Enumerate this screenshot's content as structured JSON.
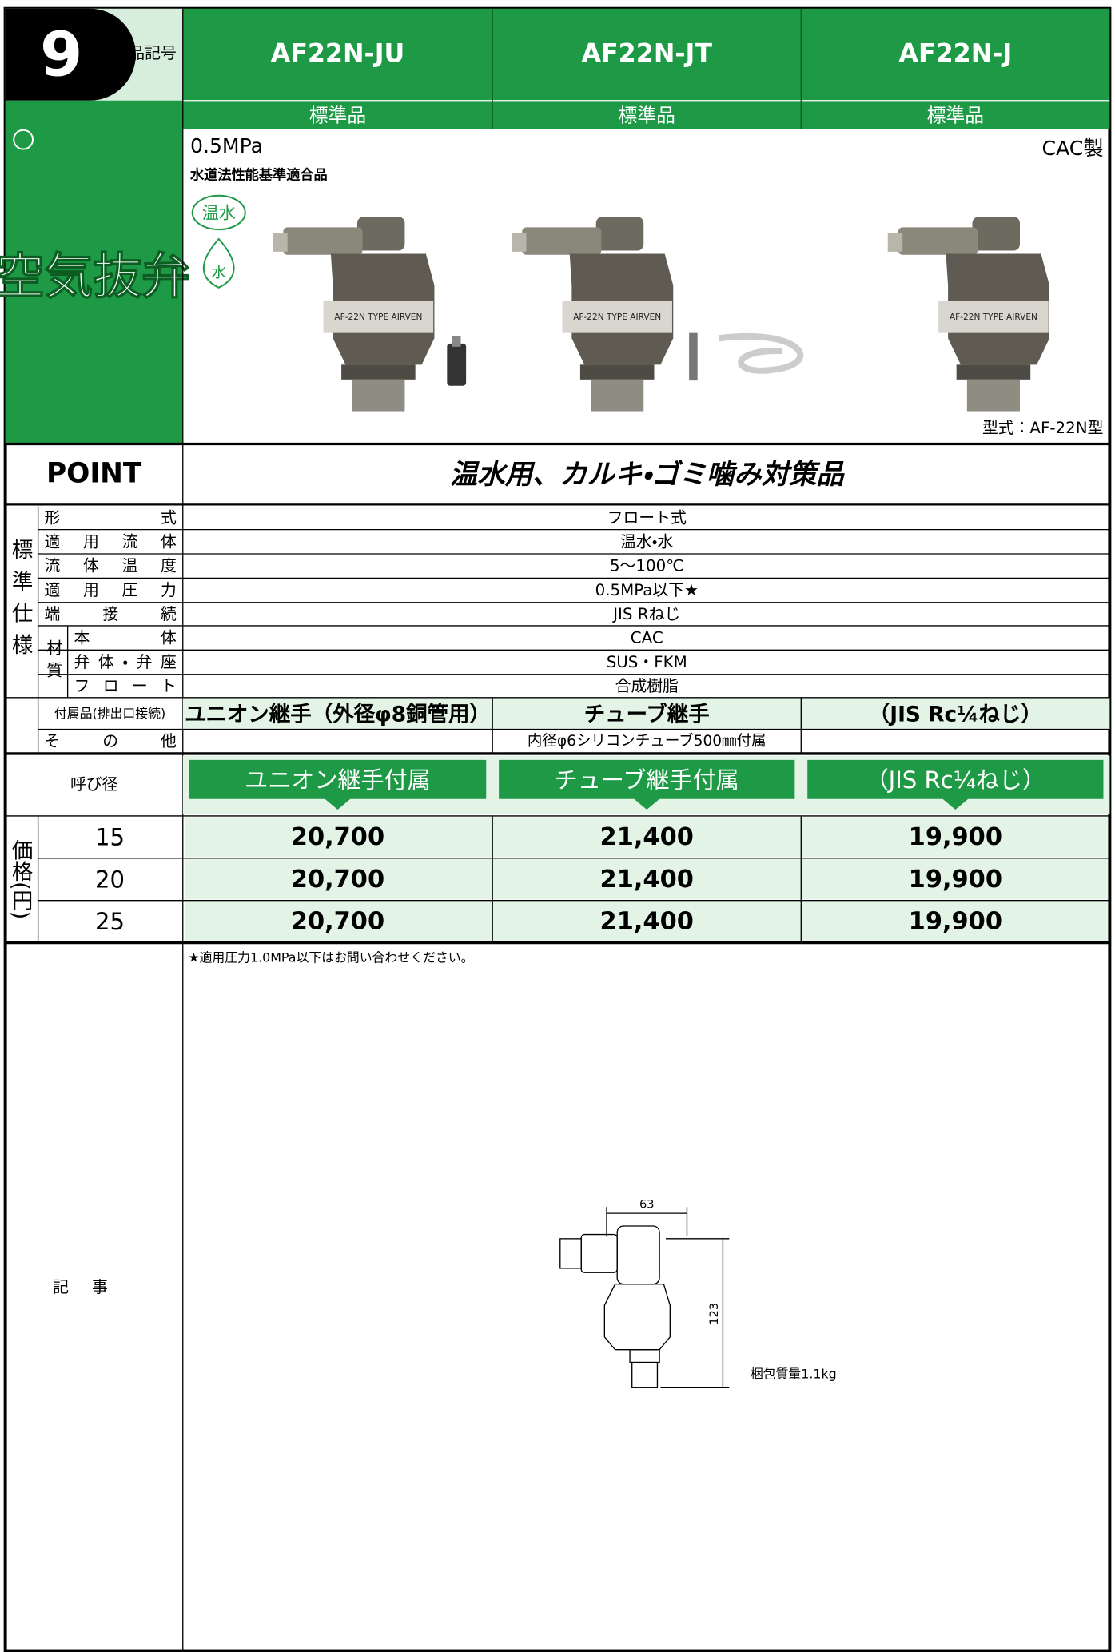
{
  "header": {
    "number": "9",
    "label": "製品記号",
    "models": [
      "AF22N-JU",
      "AF22N-JT",
      "AF22N-J"
    ],
    "grade": [
      "標準品",
      "標準品",
      "標準品"
    ]
  },
  "category": "空気抜弁",
  "product": {
    "pressure": "0.5MPa",
    "certification": "水道法性能基準適合品",
    "badges": [
      "温水",
      "水"
    ],
    "material": "CAC製",
    "model_type": "型式：AF-22N型"
  },
  "point": {
    "label": "POINT",
    "text": "温水用、カルキ・ゴミ噛み対策品"
  },
  "specs": {
    "section": "標準仕様",
    "rows": [
      {
        "label": "形式",
        "value": "フロート式"
      },
      {
        "label": "適用流体",
        "value": "温水・水"
      },
      {
        "label": "流体温度",
        "value": "5～100℃"
      },
      {
        "label": "適用圧力",
        "value": "0.5MPa以下★"
      },
      {
        "label": "端接続",
        "value": "JIS Rねじ"
      }
    ],
    "material": {
      "label": "材質",
      "rows": [
        {
          "label": "本体",
          "value": "CAC"
        },
        {
          "label": "弁体・弁座",
          "value": "SUS・FKM"
        },
        {
          "label": "フロート",
          "value": "合成樹脂"
        }
      ]
    },
    "accessory": {
      "label": "付属品(排出口接続)",
      "values": [
        "ユニオン継手（外径φ8銅管用）",
        "チューブ継手",
        "（JIS Rc¼ねじ）"
      ]
    },
    "other": {
      "label": "その他",
      "value": "内径φ6シリコンチューブ500㎜付属"
    }
  },
  "price": {
    "size_label": "呼び径",
    "section": "価格(円)",
    "headers": [
      "ユニオン継手付属",
      "チューブ継手付属",
      "（JIS Rc¼ねじ）"
    ],
    "rows": [
      {
        "size": "15",
        "prices": [
          "20,700",
          "21,400",
          "19,900"
        ]
      },
      {
        "size": "20",
        "prices": [
          "20,700",
          "21,400",
          "19,900"
        ]
      },
      {
        "size": "25",
        "prices": [
          "20,700",
          "21,400",
          "19,900"
        ]
      }
    ]
  },
  "notes": {
    "label": "記事",
    "footnote": "★適用圧力1.0MPa以下はお問い合わせください。",
    "drawing": {
      "width": "63",
      "height": "123",
      "weight": "梱包質量1.1kg"
    }
  }
}
